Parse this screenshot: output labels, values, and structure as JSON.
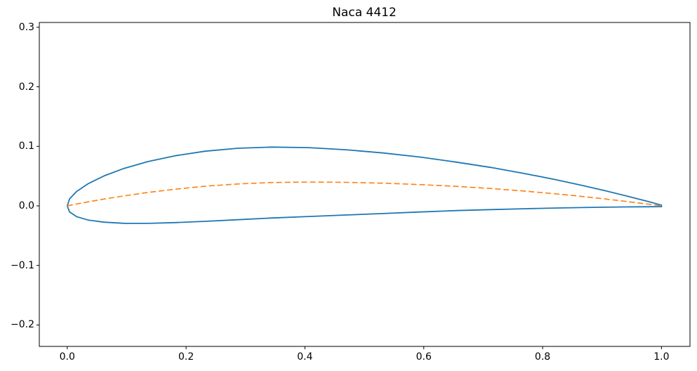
{
  "chart_data": {
    "type": "line",
    "title": "Naca 4412",
    "xlabel": "",
    "ylabel": "",
    "xlim": [
      -0.047,
      1.048
    ],
    "ylim": [
      -0.236,
      0.308
    ],
    "grid": false,
    "legend_position": "none",
    "background_color": "#ffffff",
    "spine_color": "#000000",
    "xtick_values": [
      0.0,
      0.2,
      0.4,
      0.6,
      0.8,
      1.0
    ],
    "xtick_labels": [
      "0.0",
      "0.2",
      "0.4",
      "0.6",
      "0.8",
      "1.0"
    ],
    "ytick_values": [
      -0.2,
      -0.1,
      0.0,
      0.1,
      0.2,
      0.3
    ],
    "ytick_labels": [
      "−0.2",
      "−0.1",
      "0.0",
      "0.1",
      "0.2",
      "0.3"
    ],
    "series": [
      {
        "name": "airfoil surface outline",
        "color": "#1f77b4",
        "line_style": "solid",
        "line_width": 1.8,
        "x": [
          0.0,
          0.0039,
          0.0157,
          0.0351,
          0.0618,
          0.0955,
          0.1355,
          0.1813,
          0.2321,
          0.2871,
          0.3455,
          0.4063,
          0.4686,
          0.5314,
          0.5937,
          0.6545,
          0.7129,
          0.7679,
          0.8187,
          0.8645,
          0.9045,
          0.9382,
          0.9649,
          0.9843,
          0.9961,
          1.0,
          1.0,
          0.9961,
          0.9843,
          0.9649,
          0.9382,
          0.9045,
          0.8645,
          0.8187,
          0.7679,
          0.7129,
          0.6545,
          0.5937,
          0.5314,
          0.4686,
          0.4063,
          0.3455,
          0.2871,
          0.2321,
          0.1813,
          0.1355,
          0.0955,
          0.0618,
          0.0351,
          0.0157,
          0.0039,
          0.0
        ],
        "y": [
          0.0,
          0.0117,
          0.0242,
          0.0372,
          0.0503,
          0.0629,
          0.0744,
          0.0842,
          0.0918,
          0.0968,
          0.0988,
          0.0978,
          0.0943,
          0.0889,
          0.082,
          0.0735,
          0.0646,
          0.0547,
          0.0447,
          0.0348,
          0.0256,
          0.0174,
          0.0106,
          0.0055,
          0.0023,
          0.0013,
          -0.0013,
          -0.0013,
          -0.0014,
          -0.0015,
          -0.0018,
          -0.0022,
          -0.0028,
          -0.0036,
          -0.0048,
          -0.0063,
          -0.0079,
          -0.0103,
          -0.0128,
          -0.0153,
          -0.0178,
          -0.0203,
          -0.0232,
          -0.0259,
          -0.0281,
          -0.0294,
          -0.0292,
          -0.0274,
          -0.0238,
          -0.018,
          -0.0101,
          0.0
        ]
      },
      {
        "name": "camber line",
        "color": "#ff7f0e",
        "line_style": "dashed",
        "line_width": 1.6,
        "x": [
          0.0,
          0.0039,
          0.0157,
          0.0351,
          0.0618,
          0.0955,
          0.1355,
          0.1813,
          0.2321,
          0.2871,
          0.3455,
          0.4063,
          0.4686,
          0.5314,
          0.5937,
          0.6545,
          0.7129,
          0.7679,
          0.8187,
          0.8645,
          0.9045,
          0.9382,
          0.9649,
          0.9843,
          0.9961,
          1.0
        ],
        "y": [
          0.0,
          0.0008,
          0.0031,
          0.0067,
          0.0114,
          0.0168,
          0.0225,
          0.028,
          0.033,
          0.0368,
          0.0393,
          0.04,
          0.0395,
          0.0381,
          0.0358,
          0.0328,
          0.0291,
          0.025,
          0.0205,
          0.016,
          0.0117,
          0.0078,
          0.0045,
          0.0021,
          0.0005,
          0.0
        ]
      }
    ]
  }
}
